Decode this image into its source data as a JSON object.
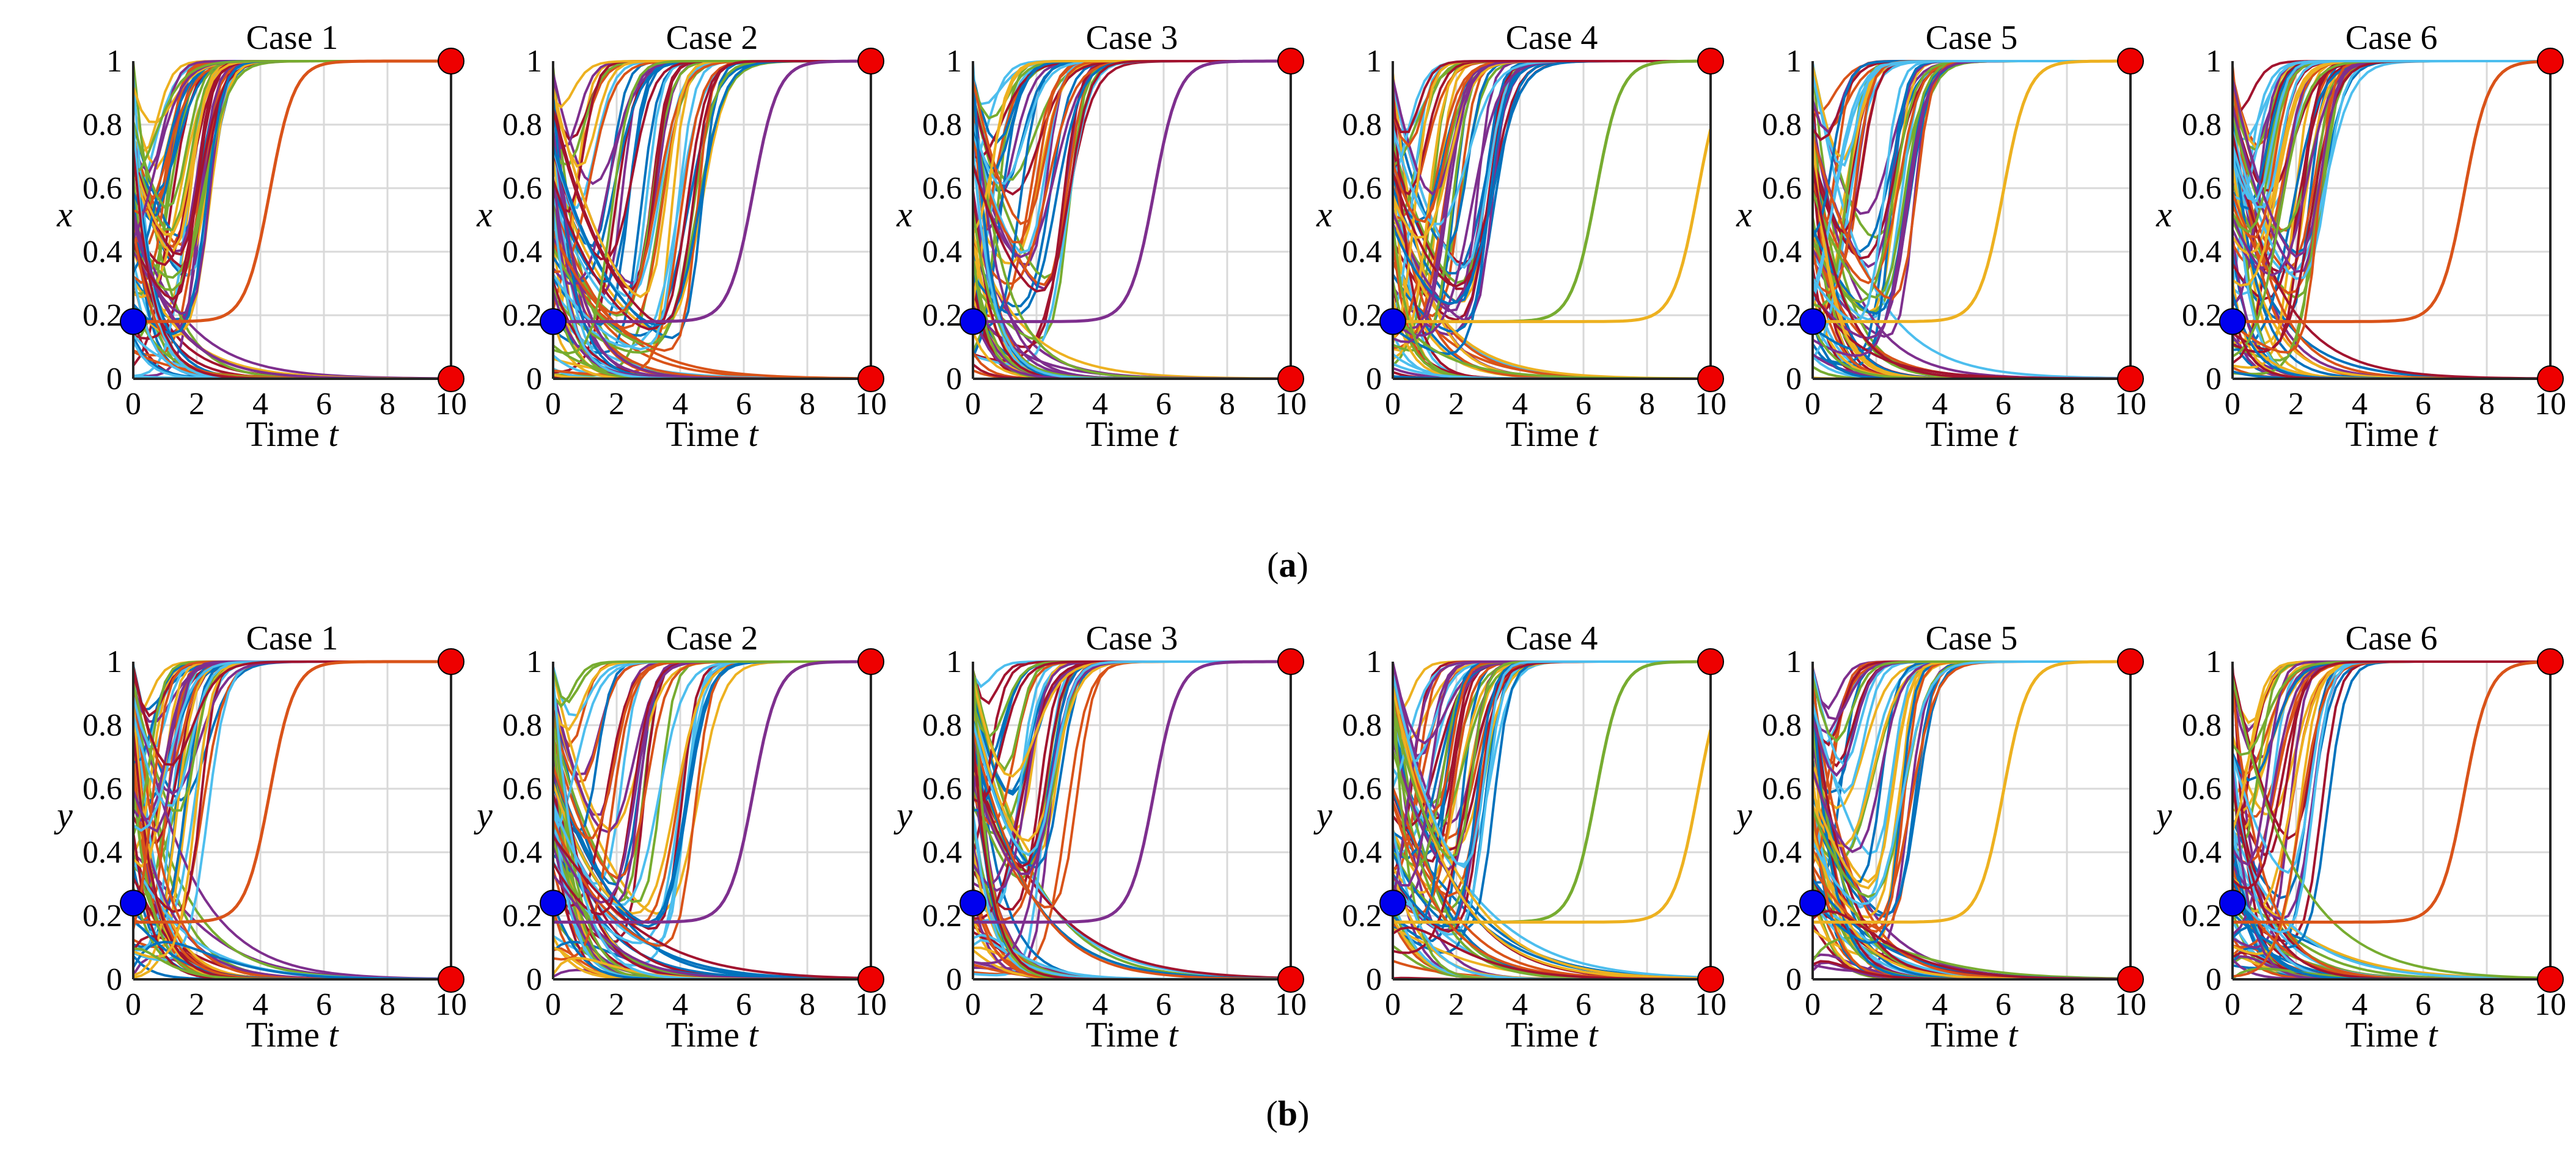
{
  "captions": {
    "a": "(a)",
    "b": "(b)",
    "a_letter": "a",
    "b_letter": "b"
  },
  "chart_data": [
    {
      "row": "a",
      "panel": 1,
      "type": "line",
      "title": "Case 1",
      "xlabel": "Time",
      "xlabel_var": "t",
      "ylabel": "x",
      "xlim": [
        0,
        10
      ],
      "ylim": [
        0,
        1
      ],
      "xticks": [
        0,
        2,
        4,
        6,
        8,
        10
      ],
      "yticks": [
        0,
        0.2,
        0.4,
        0.6,
        0.8,
        1
      ],
      "grid": true,
      "initial_point": {
        "x": 0,
        "y": 0.18,
        "color": "#0000ee"
      },
      "equilibria": [
        {
          "x": 10,
          "y": 1,
          "color": "#ee0000"
        },
        {
          "x": 10,
          "y": 0,
          "color": "#ee0000"
        }
      ],
      "late_curves": [
        {
          "color": "#d95319",
          "mid": 4.3
        }
      ]
    },
    {
      "row": "a",
      "panel": 2,
      "type": "line",
      "title": "Case 2",
      "xlabel": "Time",
      "xlabel_var": "t",
      "ylabel": "x",
      "xlim": [
        0,
        10
      ],
      "ylim": [
        0,
        1
      ],
      "xticks": [
        0,
        2,
        4,
        6,
        8,
        10
      ],
      "yticks": [
        0,
        0.2,
        0.4,
        0.6,
        0.8,
        1
      ],
      "grid": true,
      "initial_point": {
        "x": 0,
        "y": 0.18,
        "color": "#0000ee"
      },
      "equilibria": [
        {
          "x": 10,
          "y": 1,
          "color": "#ee0000"
        },
        {
          "x": 10,
          "y": 0,
          "color": "#ee0000"
        }
      ],
      "late_curves": [
        {
          "color": "#7e2f8e",
          "mid": 6.3
        }
      ]
    },
    {
      "row": "a",
      "panel": 3,
      "type": "line",
      "title": "Case 3",
      "xlabel": "Time",
      "xlabel_var": "t",
      "ylabel": "x",
      "xlim": [
        0,
        10
      ],
      "ylim": [
        0,
        1
      ],
      "xticks": [
        0,
        2,
        4,
        6,
        8,
        10
      ],
      "yticks": [
        0,
        0.2,
        0.4,
        0.6,
        0.8,
        1
      ],
      "grid": true,
      "initial_point": {
        "x": 0,
        "y": 0.18,
        "color": "#0000ee"
      },
      "equilibria": [
        {
          "x": 10,
          "y": 1,
          "color": "#ee0000"
        },
        {
          "x": 10,
          "y": 0,
          "color": "#ee0000"
        }
      ],
      "late_curves": [
        {
          "color": "#7e2f8e",
          "mid": 5.7
        }
      ]
    },
    {
      "row": "a",
      "panel": 4,
      "type": "line",
      "title": "Case 4",
      "xlabel": "Time",
      "xlabel_var": "t",
      "ylabel": "x",
      "xlim": [
        0,
        10
      ],
      "ylim": [
        0,
        1
      ],
      "xticks": [
        0,
        2,
        4,
        6,
        8,
        10
      ],
      "yticks": [
        0,
        0.2,
        0.4,
        0.6,
        0.8,
        1
      ],
      "grid": true,
      "initial_point": {
        "x": 0,
        "y": 0.18,
        "color": "#0000ee"
      },
      "equilibria": [
        {
          "x": 10,
          "y": 1,
          "color": "#ee0000"
        },
        {
          "x": 10,
          "y": 0,
          "color": "#ee0000"
        }
      ],
      "late_curves": [
        {
          "color": "#77ac30",
          "mid": 6.4
        },
        {
          "color": "#edb120",
          "mid": 9.6
        }
      ]
    },
    {
      "row": "a",
      "panel": 5,
      "type": "line",
      "title": "Case 5",
      "xlabel": "Time",
      "xlabel_var": "t",
      "ylabel": "x",
      "xlim": [
        0,
        10
      ],
      "ylim": [
        0,
        1
      ],
      "xticks": [
        0,
        2,
        4,
        6,
        8,
        10
      ],
      "yticks": [
        0,
        0.2,
        0.4,
        0.6,
        0.8,
        1
      ],
      "grid": true,
      "initial_point": {
        "x": 0,
        "y": 0.18,
        "color": "#0000ee"
      },
      "equilibria": [
        {
          "x": 10,
          "y": 1,
          "color": "#ee0000"
        },
        {
          "x": 10,
          "y": 0,
          "color": "#ee0000"
        }
      ],
      "late_curves": [
        {
          "color": "#edb120",
          "mid": 6.0
        }
      ]
    },
    {
      "row": "a",
      "panel": 6,
      "type": "line",
      "title": "Case 6",
      "xlabel": "Time",
      "xlabel_var": "t",
      "ylabel": "x",
      "xlim": [
        0,
        10
      ],
      "ylim": [
        0,
        1
      ],
      "xticks": [
        0,
        2,
        4,
        6,
        8,
        10
      ],
      "yticks": [
        0,
        0.2,
        0.4,
        0.6,
        0.8,
        1
      ],
      "grid": true,
      "initial_point": {
        "x": 0,
        "y": 0.18,
        "color": "#0000ee"
      },
      "equilibria": [
        {
          "x": 10,
          "y": 1,
          "color": "#ee0000"
        },
        {
          "x": 10,
          "y": 0,
          "color": "#ee0000"
        }
      ],
      "late_curves": [
        {
          "color": "#d95319",
          "mid": 7.3
        }
      ]
    },
    {
      "row": "b",
      "panel": 1,
      "type": "line",
      "title": "Case 1",
      "xlabel": "Time",
      "xlabel_var": "t",
      "ylabel": "y",
      "xlim": [
        0,
        10
      ],
      "ylim": [
        0,
        1
      ],
      "xticks": [
        0,
        2,
        4,
        6,
        8,
        10
      ],
      "yticks": [
        0,
        0.2,
        0.4,
        0.6,
        0.8,
        1
      ],
      "grid": true,
      "initial_point": {
        "x": 0,
        "y": 0.24,
        "color": "#0000ee"
      },
      "equilibria": [
        {
          "x": 10,
          "y": 1,
          "color": "#ee0000"
        },
        {
          "x": 10,
          "y": 0,
          "color": "#ee0000"
        }
      ],
      "late_curves": [
        {
          "color": "#d95319",
          "mid": 4.3
        }
      ]
    },
    {
      "row": "b",
      "panel": 2,
      "type": "line",
      "title": "Case 2",
      "xlabel": "Time",
      "xlabel_var": "t",
      "ylabel": "y",
      "xlim": [
        0,
        10
      ],
      "ylim": [
        0,
        1
      ],
      "xticks": [
        0,
        2,
        4,
        6,
        8,
        10
      ],
      "yticks": [
        0,
        0.2,
        0.4,
        0.6,
        0.8,
        1
      ],
      "grid": true,
      "initial_point": {
        "x": 0,
        "y": 0.24,
        "color": "#0000ee"
      },
      "equilibria": [
        {
          "x": 10,
          "y": 1,
          "color": "#ee0000"
        },
        {
          "x": 10,
          "y": 0,
          "color": "#ee0000"
        }
      ],
      "late_curves": [
        {
          "color": "#7e2f8e",
          "mid": 6.3
        }
      ]
    },
    {
      "row": "b",
      "panel": 3,
      "type": "line",
      "title": "Case 3",
      "xlabel": "Time",
      "xlabel_var": "t",
      "ylabel": "y",
      "xlim": [
        0,
        10
      ],
      "ylim": [
        0,
        1
      ],
      "xticks": [
        0,
        2,
        4,
        6,
        8,
        10
      ],
      "yticks": [
        0,
        0.2,
        0.4,
        0.6,
        0.8,
        1
      ],
      "grid": true,
      "initial_point": {
        "x": 0,
        "y": 0.24,
        "color": "#0000ee"
      },
      "equilibria": [
        {
          "x": 10,
          "y": 1,
          "color": "#ee0000"
        },
        {
          "x": 10,
          "y": 0,
          "color": "#ee0000"
        }
      ],
      "late_curves": [
        {
          "color": "#7e2f8e",
          "mid": 5.7
        }
      ]
    },
    {
      "row": "b",
      "panel": 4,
      "type": "line",
      "title": "Case 4",
      "xlabel": "Time",
      "xlabel_var": "t",
      "ylabel": "y",
      "xlim": [
        0,
        10
      ],
      "ylim": [
        0,
        1
      ],
      "xticks": [
        0,
        2,
        4,
        6,
        8,
        10
      ],
      "yticks": [
        0,
        0.2,
        0.4,
        0.6,
        0.8,
        1
      ],
      "grid": true,
      "initial_point": {
        "x": 0,
        "y": 0.24,
        "color": "#0000ee"
      },
      "equilibria": [
        {
          "x": 10,
          "y": 1,
          "color": "#ee0000"
        },
        {
          "x": 10,
          "y": 0,
          "color": "#ee0000"
        }
      ],
      "late_curves": [
        {
          "color": "#77ac30",
          "mid": 6.4
        },
        {
          "color": "#edb120",
          "mid": 9.6
        }
      ]
    },
    {
      "row": "b",
      "panel": 5,
      "type": "line",
      "title": "Case 5",
      "xlabel": "Time",
      "xlabel_var": "t",
      "ylabel": "y",
      "xlim": [
        0,
        10
      ],
      "ylim": [
        0,
        1
      ],
      "xticks": [
        0,
        2,
        4,
        6,
        8,
        10
      ],
      "yticks": [
        0,
        0.2,
        0.4,
        0.6,
        0.8,
        1
      ],
      "grid": true,
      "initial_point": {
        "x": 0,
        "y": 0.24,
        "color": "#0000ee"
      },
      "equilibria": [
        {
          "x": 10,
          "y": 1,
          "color": "#ee0000"
        },
        {
          "x": 10,
          "y": 0,
          "color": "#ee0000"
        }
      ],
      "late_curves": [
        {
          "color": "#edb120",
          "mid": 6.0
        }
      ]
    },
    {
      "row": "b",
      "panel": 6,
      "type": "line",
      "title": "Case 6",
      "xlabel": "Time",
      "xlabel_var": "t",
      "ylabel": "y",
      "xlim": [
        0,
        10
      ],
      "ylim": [
        0,
        1
      ],
      "xticks": [
        0,
        2,
        4,
        6,
        8,
        10
      ],
      "yticks": [
        0,
        0.2,
        0.4,
        0.6,
        0.8,
        1
      ],
      "grid": true,
      "initial_point": {
        "x": 0,
        "y": 0.24,
        "color": "#0000ee"
      },
      "equilibria": [
        {
          "x": 10,
          "y": 1,
          "color": "#ee0000"
        },
        {
          "x": 10,
          "y": 0,
          "color": "#ee0000"
        }
      ],
      "late_curves": [
        {
          "color": "#d95319",
          "mid": 7.3
        }
      ]
    }
  ],
  "series_colors": [
    "#0072bd",
    "#d95319",
    "#edb120",
    "#7e2f8e",
    "#77ac30",
    "#4dbeee",
    "#a2142f"
  ]
}
